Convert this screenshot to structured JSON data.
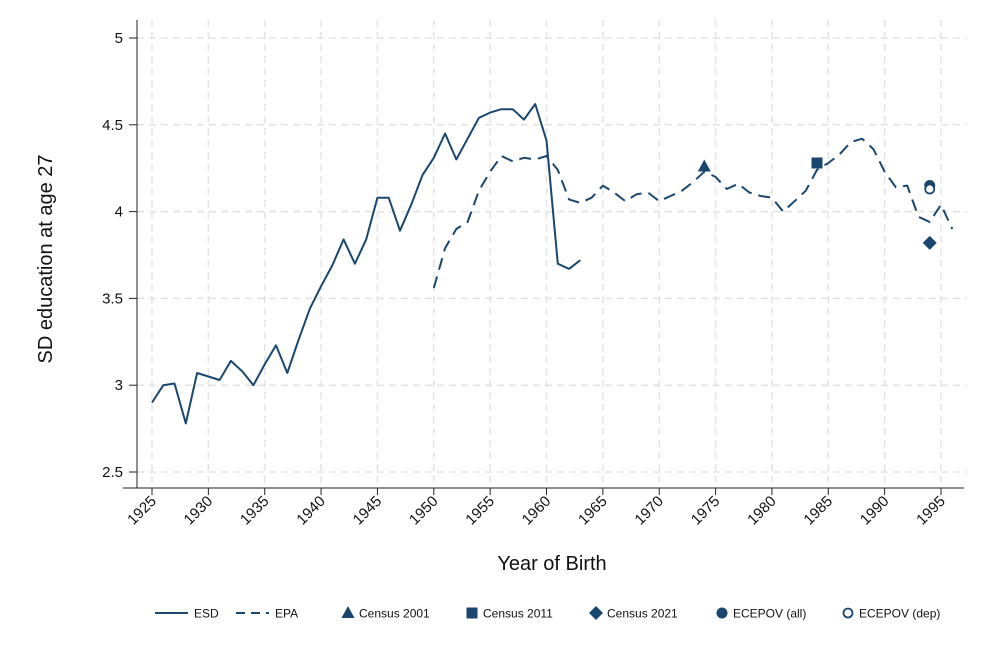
{
  "chart_data": {
    "type": "line",
    "title": "",
    "xlabel": "Year of Birth",
    "ylabel": "SD education at age 27",
    "xlim": [
      1924,
      1997
    ],
    "ylim": [
      2.4,
      5.05
    ],
    "xticks": [
      1925,
      1930,
      1935,
      1940,
      1945,
      1950,
      1955,
      1960,
      1965,
      1970,
      1975,
      1980,
      1985,
      1990,
      1995
    ],
    "xtick_labels": [
      "1925",
      "1930",
      "1935",
      "1940",
      "1945",
      "1950",
      "1955",
      "1960",
      "1965",
      "1970",
      "1975",
      "1980",
      "1985",
      "1990",
      "1995"
    ],
    "yticks": [
      2.5,
      3,
      3.5,
      4,
      4.5,
      5
    ],
    "ytick_labels": [
      "2.5",
      "3",
      "3.5",
      "4",
      "4.5",
      "5"
    ],
    "grid": true,
    "legend_position": "bottom",
    "color": "#1a476f",
    "series": [
      {
        "name": "ESD",
        "kind": "line",
        "style": "solid",
        "x": [
          1925,
          1926,
          1927,
          1928,
          1929,
          1930,
          1931,
          1932,
          1933,
          1934,
          1935,
          1936,
          1937,
          1938,
          1939,
          1940,
          1941,
          1942,
          1943,
          1944,
          1945,
          1946,
          1947,
          1948,
          1949,
          1950,
          1951,
          1952,
          1953,
          1954,
          1955,
          1956,
          1957,
          1958,
          1959,
          1960,
          1961,
          1962,
          1963
        ],
        "values": [
          2.9,
          3.0,
          3.01,
          2.78,
          3.07,
          3.05,
          3.03,
          3.14,
          3.08,
          3.0,
          3.12,
          3.23,
          3.07,
          3.26,
          3.44,
          3.57,
          3.69,
          3.84,
          3.7,
          3.84,
          4.08,
          4.08,
          3.89,
          4.04,
          4.21,
          4.31,
          4.45,
          4.3,
          4.42,
          4.54,
          4.57,
          4.59,
          4.59,
          4.53,
          4.62,
          4.41,
          3.7,
          3.67,
          3.72
        ]
      },
      {
        "name": "EPA",
        "kind": "line",
        "style": "dashed",
        "x": [
          1950,
          1951,
          1952,
          1953,
          1954,
          1955,
          1956,
          1957,
          1958,
          1959,
          1960,
          1961,
          1962,
          1963,
          1964,
          1965,
          1966,
          1967,
          1968,
          1969,
          1970,
          1971,
          1972,
          1973,
          1974,
          1975,
          1976,
          1977,
          1978,
          1979,
          1980,
          1981,
          1982,
          1983,
          1984,
          1985,
          1986,
          1987,
          1988,
          1989,
          1990,
          1991,
          1992,
          1993,
          1994,
          1995,
          1996
        ],
        "values": [
          3.56,
          3.79,
          3.9,
          3.94,
          4.12,
          4.23,
          4.32,
          4.29,
          4.31,
          4.3,
          4.32,
          4.24,
          4.07,
          4.05,
          4.08,
          4.15,
          4.11,
          4.06,
          4.1,
          4.11,
          4.06,
          4.09,
          4.12,
          4.17,
          4.23,
          4.2,
          4.13,
          4.16,
          4.11,
          4.09,
          4.08,
          4.0,
          4.06,
          4.12,
          4.24,
          4.28,
          4.33,
          4.4,
          4.42,
          4.36,
          4.23,
          4.14,
          4.15,
          3.97,
          3.94,
          4.04,
          3.9
        ]
      },
      {
        "name": "Census 2001",
        "kind": "marker",
        "marker": "triangle",
        "x": [
          1974
        ],
        "values": [
          4.26
        ]
      },
      {
        "name": "Census 2011",
        "kind": "marker",
        "marker": "square",
        "x": [
          1984
        ],
        "values": [
          4.28
        ]
      },
      {
        "name": "Census 2021",
        "kind": "marker",
        "marker": "diamond",
        "x": [
          1994
        ],
        "values": [
          3.82
        ]
      },
      {
        "name": "ECEPOV (all)",
        "kind": "marker",
        "marker": "circle",
        "x": [
          1994
        ],
        "values": [
          4.15
        ]
      },
      {
        "name": "ECEPOV (dep)",
        "kind": "marker",
        "marker": "circle-open",
        "x": [
          1994
        ],
        "values": [
          4.13
        ]
      }
    ]
  }
}
